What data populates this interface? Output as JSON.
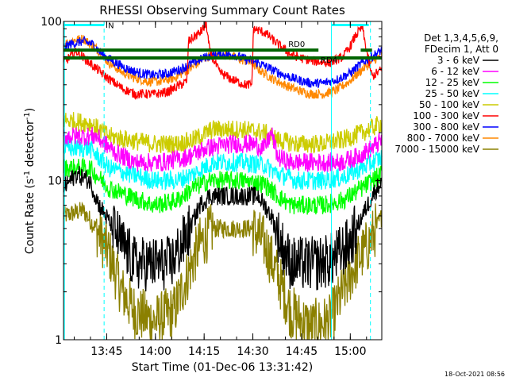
{
  "chart_data": {
    "type": "line",
    "title": "RHESSI Observing Summary Count Rates",
    "xlabel": "Start Time (01-Dec-06 13:31:42)",
    "ylabel_main": "Count Rate (s",
    "ylabel_sup1": "-1",
    "ylabel_mid": " detector",
    "ylabel_sup2": "-1",
    "ylabel_end": ")",
    "stamp": "18-Oct-2021 08:56",
    "x_range_minutes": [
      0,
      98
    ],
    "y_scale": "log",
    "ylim": [
      1,
      100
    ],
    "yticks": [
      {
        "v": 1,
        "label": "1"
      },
      {
        "v": 10,
        "label": "10"
      },
      {
        "v": 100,
        "label": "100"
      }
    ],
    "xticks": [
      {
        "t": 13.3,
        "label": "13:45"
      },
      {
        "t": 28.3,
        "label": "14:00"
      },
      {
        "t": 43.3,
        "label": "14:15"
      },
      {
        "t": 58.3,
        "label": "14:30"
      },
      {
        "t": 73.3,
        "label": "14:45"
      },
      {
        "t": 88.3,
        "label": "15:00"
      }
    ],
    "legend_header": [
      "Det 1,3,4,5,6,9,",
      "FDecim 1, Att 0"
    ],
    "legend": [
      {
        "label": "3 - 6 keV",
        "color": "#000000"
      },
      {
        "label": "6 - 12 keV",
        "color": "#ff00ff"
      },
      {
        "label": "12 - 25 keV",
        "color": "#00ff00"
      },
      {
        "label": "25 - 50 keV",
        "color": "#00ffff"
      },
      {
        "label": "50 - 100 keV",
        "color": "#cccc00"
      },
      {
        "label": "100 - 300 keV",
        "color": "#ff0000"
      },
      {
        "label": "300 - 800 keV",
        "color": "#0000ff"
      },
      {
        "label": "800 - 7000 keV",
        "color": "#ff8800"
      },
      {
        "label": "7000 - 15000 keV",
        "color": "#8b8000"
      }
    ],
    "flags": [
      {
        "name": "N",
        "color": "#00ffff",
        "y": 95,
        "segments": [
          [
            0,
            12.5
          ],
          [
            82.5,
            94
          ]
        ]
      },
      {
        "name": "RD0",
        "color": "#006400",
        "y": 66,
        "segments": [
          [
            0,
            78.5
          ],
          [
            91.5,
            95
          ]
        ]
      },
      {
        "name": "RD4",
        "color": "#006400",
        "y": 59,
        "segments": [
          [
            0,
            98
          ]
        ]
      }
    ],
    "vertical_markers": [
      {
        "t": 12.5,
        "style": "dashed",
        "color": "#00ffff"
      },
      {
        "t": 82.5,
        "style": "solid",
        "color": "#00ffff"
      },
      {
        "t": 94.5,
        "style": "dashed",
        "color": "#00ffff"
      }
    ],
    "series": [
      {
        "name": "3 - 6 keV",
        "color": "#000000",
        "anchors": [
          [
            0,
            9
          ],
          [
            4,
            11
          ],
          [
            8,
            10
          ],
          [
            11,
            7
          ],
          [
            13,
            6
          ],
          [
            18,
            4
          ],
          [
            22,
            3
          ],
          [
            28,
            3
          ],
          [
            33,
            3
          ],
          [
            38,
            4.5
          ],
          [
            42,
            7
          ],
          [
            45,
            8
          ],
          [
            50,
            8
          ],
          [
            55,
            8
          ],
          [
            60,
            8
          ],
          [
            64,
            6
          ],
          [
            67,
            4
          ],
          [
            70,
            3
          ],
          [
            78,
            3
          ],
          [
            83,
            3.2
          ],
          [
            88,
            4
          ],
          [
            92,
            6
          ],
          [
            95,
            8
          ],
          [
            98,
            10
          ]
        ]
      },
      {
        "name": "6 - 12 keV",
        "color": "#ff00ff",
        "anchors": [
          [
            0,
            19
          ],
          [
            10,
            19
          ],
          [
            16,
            15
          ],
          [
            22,
            13
          ],
          [
            30,
            13
          ],
          [
            38,
            14
          ],
          [
            44,
            16
          ],
          [
            52,
            17
          ],
          [
            58,
            17
          ],
          [
            62,
            16
          ],
          [
            64,
            20
          ],
          [
            66,
            14
          ],
          [
            70,
            13
          ],
          [
            78,
            13
          ],
          [
            85,
            13
          ],
          [
            90,
            14
          ],
          [
            95,
            16
          ],
          [
            98,
            18
          ]
        ]
      },
      {
        "name": "12 - 25 keV",
        "color": "#00ff00",
        "anchors": [
          [
            0,
            12
          ],
          [
            8,
            12
          ],
          [
            14,
            9
          ],
          [
            20,
            8
          ],
          [
            28,
            7
          ],
          [
            35,
            7.5
          ],
          [
            40,
            9
          ],
          [
            45,
            10
          ],
          [
            55,
            10
          ],
          [
            62,
            9.5
          ],
          [
            66,
            8
          ],
          [
            70,
            7
          ],
          [
            80,
            7
          ],
          [
            86,
            7.5
          ],
          [
            92,
            9
          ],
          [
            98,
            11
          ]
        ]
      },
      {
        "name": "25 - 50 keV",
        "color": "#00ffff",
        "anchors": [
          [
            0,
            16
          ],
          [
            8,
            16
          ],
          [
            14,
            12
          ],
          [
            20,
            11
          ],
          [
            28,
            10
          ],
          [
            35,
            10
          ],
          [
            40,
            11
          ],
          [
            46,
            13
          ],
          [
            55,
            13
          ],
          [
            62,
            12.5
          ],
          [
            66,
            11
          ],
          [
            72,
            10
          ],
          [
            80,
            10
          ],
          [
            86,
            10.5
          ],
          [
            92,
            12
          ],
          [
            98,
            14
          ]
        ]
      },
      {
        "name": "50 - 100 keV",
        "color": "#cccc00",
        "anchors": [
          [
            0,
            24
          ],
          [
            8,
            23
          ],
          [
            14,
            19
          ],
          [
            20,
            18
          ],
          [
            28,
            17
          ],
          [
            35,
            17
          ],
          [
            40,
            18
          ],
          [
            46,
            21
          ],
          [
            55,
            21
          ],
          [
            62,
            20
          ],
          [
            66,
            18
          ],
          [
            72,
            17
          ],
          [
            80,
            17
          ],
          [
            86,
            18
          ],
          [
            92,
            20
          ],
          [
            98,
            23
          ]
        ]
      },
      {
        "name": "100 - 300 keV",
        "color": "#ff0000",
        "anchors": [
          [
            0,
            55
          ],
          [
            4,
            65
          ],
          [
            8,
            55
          ],
          [
            13,
            45
          ],
          [
            18,
            38
          ],
          [
            22,
            35
          ],
          [
            28,
            35
          ],
          [
            32,
            36
          ],
          [
            36,
            40
          ],
          [
            38,
            42
          ],
          [
            38.5,
            75
          ],
          [
            42,
            85
          ],
          [
            44,
            95
          ],
          [
            45,
            65
          ],
          [
            48,
            48
          ],
          [
            52,
            43
          ],
          [
            56,
            40
          ],
          [
            58,
            40
          ],
          [
            58.5,
            90
          ],
          [
            62,
            85
          ],
          [
            66,
            72
          ],
          [
            70,
            62
          ],
          [
            74,
            58
          ],
          [
            78,
            56
          ],
          [
            82,
            55
          ],
          [
            86,
            60
          ],
          [
            88,
            68
          ],
          [
            90,
            82
          ],
          [
            92,
            92
          ],
          [
            93,
            70
          ],
          [
            95,
            45
          ],
          [
            98,
            50
          ]
        ]
      },
      {
        "name": "300 - 800 keV",
        "color": "#0000ff",
        "anchors": [
          [
            0,
            68
          ],
          [
            2,
            72
          ],
          [
            6,
            75
          ],
          [
            9,
            72
          ],
          [
            12,
            62
          ],
          [
            16,
            55
          ],
          [
            20,
            50
          ],
          [
            24,
            47
          ],
          [
            28,
            46
          ],
          [
            32,
            47
          ],
          [
            36,
            50
          ],
          [
            40,
            55
          ],
          [
            44,
            60
          ],
          [
            48,
            62
          ],
          [
            52,
            62
          ],
          [
            56,
            58
          ],
          [
            60,
            55
          ],
          [
            64,
            50
          ],
          [
            68,
            46
          ],
          [
            72,
            43
          ],
          [
            76,
            41
          ],
          [
            80,
            41
          ],
          [
            84,
            43
          ],
          [
            88,
            47
          ],
          [
            92,
            55
          ],
          [
            96,
            62
          ],
          [
            98,
            66
          ]
        ]
      },
      {
        "name": "800 - 7000 keV",
        "color": "#ff8800",
        "anchors": [
          [
            0,
            72
          ],
          [
            3,
            76
          ],
          [
            6,
            78
          ],
          [
            10,
            68
          ],
          [
            14,
            55
          ],
          [
            18,
            48
          ],
          [
            22,
            44
          ],
          [
            26,
            42
          ],
          [
            30,
            42
          ],
          [
            34,
            44
          ],
          [
            37,
            48
          ],
          [
            40,
            52
          ],
          [
            43,
            58
          ],
          [
            46,
            62
          ],
          [
            50,
            62
          ],
          [
            54,
            58
          ],
          [
            58,
            55
          ],
          [
            60,
            50
          ],
          [
            64,
            44
          ],
          [
            68,
            40
          ],
          [
            72,
            37
          ],
          [
            76,
            35
          ],
          [
            80,
            35
          ],
          [
            84,
            37
          ],
          [
            88,
            42
          ],
          [
            92,
            50
          ],
          [
            96,
            58
          ],
          [
            98,
            62
          ]
        ]
      },
      {
        "name": "7000 - 15000 keV",
        "color": "#8b8000",
        "anchors": [
          [
            0,
            6
          ],
          [
            6,
            6.5
          ],
          [
            10,
            5
          ],
          [
            14,
            3.5
          ],
          [
            18,
            2
          ],
          [
            22,
            1.5
          ],
          [
            28,
            1.3
          ],
          [
            34,
            1.5
          ],
          [
            38,
            2.5
          ],
          [
            42,
            4
          ],
          [
            46,
            5
          ],
          [
            52,
            5
          ],
          [
            58,
            5
          ],
          [
            62,
            4
          ],
          [
            66,
            2.5
          ],
          [
            70,
            1.5
          ],
          [
            76,
            1.2
          ],
          [
            82,
            1.3
          ],
          [
            86,
            2
          ],
          [
            90,
            3
          ],
          [
            94,
            4
          ],
          [
            98,
            6
          ]
        ]
      }
    ]
  }
}
